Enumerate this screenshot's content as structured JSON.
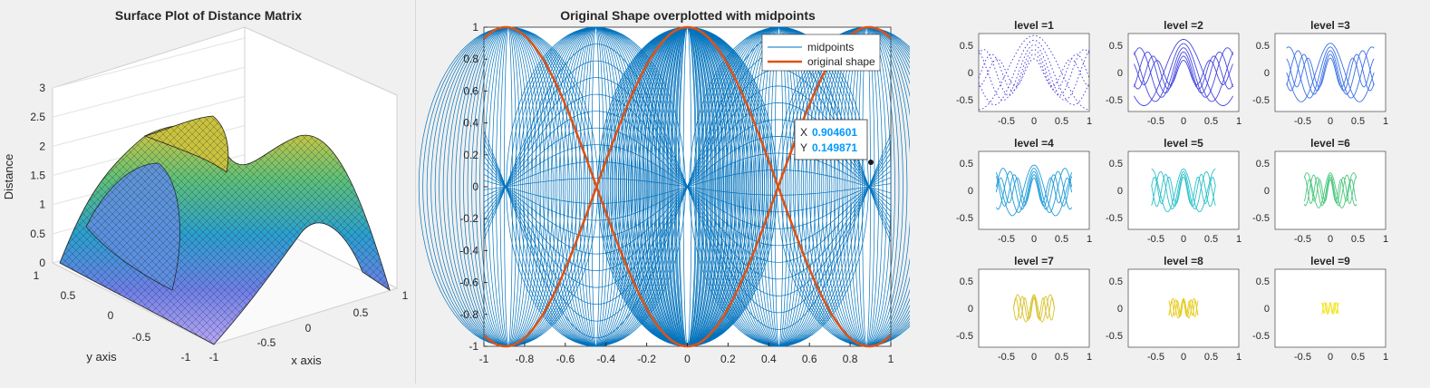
{
  "panels": {
    "surface": {
      "title": "Surface Plot of Distance Matrix",
      "zlabel": "Distance",
      "xlabel": "x axis",
      "ylabel": "y axis",
      "z_ticks": [
        "0",
        "0.5",
        "1",
        "1.5",
        "2",
        "2.5",
        "3"
      ],
      "x_ticks": [
        "-1",
        "-0.5",
        "0",
        "0.5",
        "1"
      ],
      "y_ticks": [
        "-1",
        "-0.5",
        "0",
        "0.5",
        "1"
      ]
    },
    "overplot": {
      "title": "Original Shape overplotted with midpoints",
      "datatip": {
        "x_label": "X",
        "x_value": "0.904601",
        "y_label": "Y",
        "y_value": "0.149871"
      }
    }
  },
  "chart_data": [
    {
      "type": "surface",
      "title": "Surface Plot of Distance Matrix",
      "xlabel": "x axis",
      "ylabel": "y axis",
      "zlabel": "Distance",
      "xlim": [
        -1,
        1
      ],
      "ylim": [
        -1,
        1
      ],
      "zlim": [
        0,
        3
      ],
      "colormap": "parula"
    },
    {
      "type": "line",
      "title": "Original Shape overplotted with midpoints",
      "xlim": [
        -1,
        1
      ],
      "ylim": [
        -1,
        1
      ],
      "x_ticks": [
        -1,
        -0.8,
        -0.6,
        -0.4,
        -0.2,
        0,
        0.2,
        0.4,
        0.6,
        0.8,
        1
      ],
      "y_ticks": [
        -1,
        -0.8,
        -0.6,
        -0.4,
        -0.2,
        0,
        0.2,
        0.4,
        0.6,
        0.8,
        1
      ],
      "legend_position": "top-right",
      "series": [
        {
          "name": "midpoints",
          "color": "#0072bd"
        },
        {
          "name": "original shape",
          "color": "#d95319"
        }
      ],
      "datatip": {
        "x": 0.904601,
        "y": 0.149871
      }
    },
    {
      "type": "line",
      "subplots": [
        {
          "title": "level =1",
          "color": "#3f33d6"
        },
        {
          "title": "level =2",
          "color": "#4646e0"
        },
        {
          "title": "level =3",
          "color": "#3a6fe6"
        },
        {
          "title": "level =4",
          "color": "#1f9bd8"
        },
        {
          "title": "level =5",
          "color": "#2bc0c8"
        },
        {
          "title": "level =6",
          "color": "#4cc77e"
        },
        {
          "title": "level =7",
          "color": "#d8c22a"
        },
        {
          "title": "level =8",
          "color": "#e4cb1c"
        },
        {
          "title": "level =9",
          "color": "#f3e41a"
        }
      ],
      "x_ticks": [
        "-0.5",
        "0",
        "0.5",
        "1"
      ],
      "y_ticks": [
        "0.5",
        "0",
        "-0.5"
      ]
    }
  ]
}
